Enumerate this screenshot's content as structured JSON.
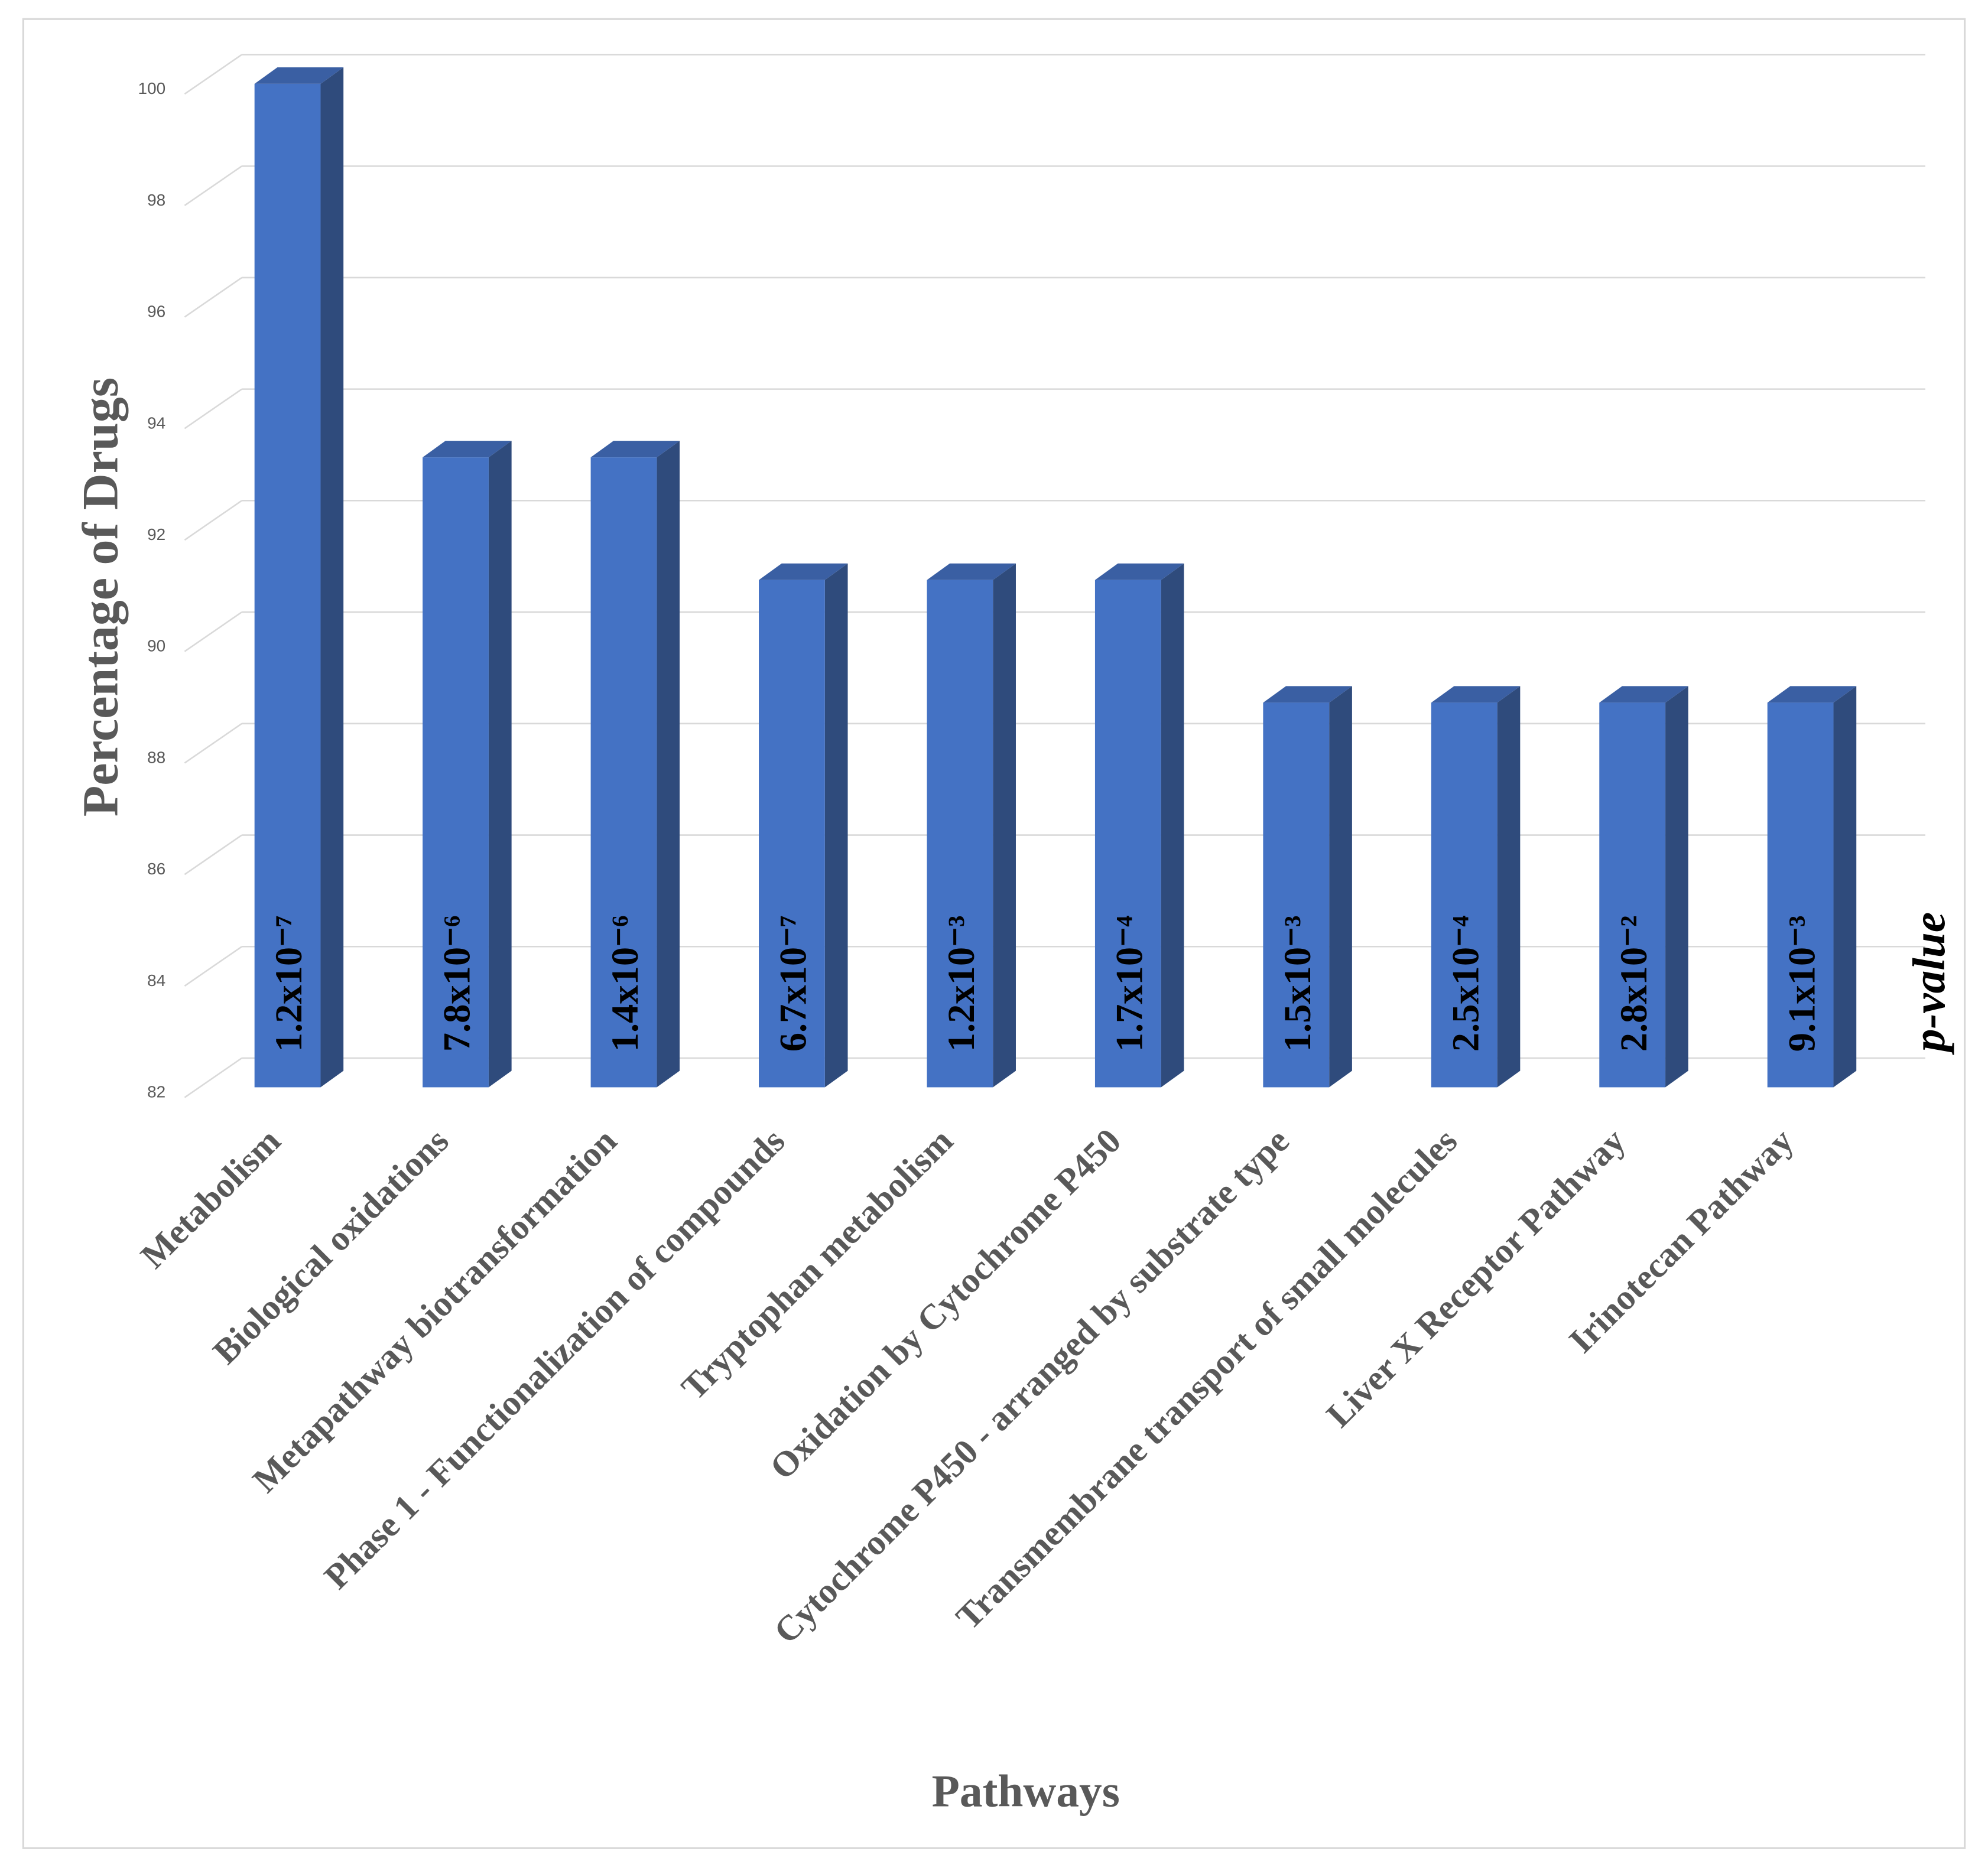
{
  "chart_data": {
    "type": "bar3d",
    "y_label": "Percentage of Drugs",
    "x_label": "Pathways",
    "annotation_title": "p-value",
    "categories": [
      "Metabolism",
      "Biological oxidations",
      "Metapathway biotransformation",
      "Phase 1 - Functionalization of compounds",
      "Tryptophan metabolism",
      "Oxidation by Cytochrome P450",
      "Cytochrome P450 - arranged by substrate type",
      "Transmembrane transport of small molecules",
      "Liver X Receptor Pathway",
      "Irinotecan Pathway"
    ],
    "values": [
      100,
      93.3,
      93.3,
      91.1,
      91.1,
      91.1,
      88.9,
      88.9,
      88.9,
      88.9
    ],
    "p_values": [
      "1.2x10⁻⁷",
      "7.8x10⁻⁶",
      "1.4x10⁻⁶",
      "6.7x10⁻⁷",
      "1.2x10⁻³",
      "1.7x10⁻⁴",
      "1.5x10⁻³",
      "2.5x10⁻⁴",
      "2.8x10⁻²",
      "9.1x10⁻³"
    ],
    "color": "#4472c4",
    "ylim": [
      82,
      100
    ],
    "yticks": [
      82,
      84,
      86,
      88,
      90,
      92,
      94,
      96,
      98,
      100
    ],
    "grid": true
  }
}
